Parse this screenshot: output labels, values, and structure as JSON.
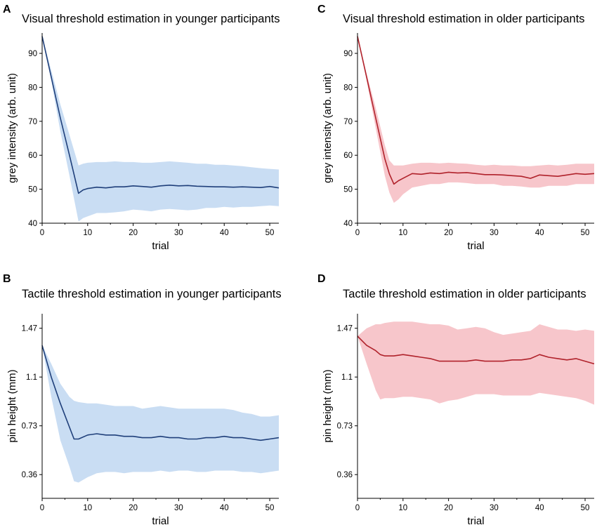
{
  "chart_data": [
    {
      "id": "A",
      "panel_label": "A",
      "type": "line",
      "title": "Visual threshold estimation in younger participants",
      "xlabel": "trial",
      "ylabel": "grey intensity (arb. unit)",
      "xlim": [
        0,
        52
      ],
      "ylim": [
        40,
        96
      ],
      "xticks": [
        0,
        10,
        20,
        30,
        40,
        50
      ],
      "yticks": [
        40,
        50,
        60,
        70,
        80,
        90
      ],
      "ytick_labels": [
        "40",
        "50",
        "60",
        "70",
        "80",
        "90"
      ],
      "line_color": "#1f3f7a",
      "band_color": "#c9ddf3",
      "series": [
        {
          "name": "mean",
          "x": [
            0,
            2,
            4,
            6,
            8,
            9,
            10,
            12,
            14,
            16,
            18,
            20,
            22,
            24,
            26,
            28,
            30,
            32,
            34,
            36,
            38,
            40,
            42,
            44,
            46,
            48,
            50,
            52
          ],
          "y": [
            95,
            83,
            71,
            60,
            48.8,
            49.8,
            50.2,
            50.6,
            50.4,
            50.7,
            50.7,
            51.0,
            50.8,
            50.6,
            51.0,
            51.2,
            51.0,
            51.1,
            50.9,
            50.8,
            50.7,
            50.7,
            50.6,
            50.7,
            50.6,
            50.5,
            50.8,
            50.4
          ],
          "lower": [
            95,
            82,
            67,
            54,
            40.5,
            41.5,
            42.0,
            43.0,
            43.0,
            43.2,
            43.5,
            44.0,
            43.8,
            43.5,
            44.0,
            44.2,
            44.0,
            43.8,
            44.0,
            44.5,
            44.5,
            44.8,
            44.6,
            44.8,
            44.8,
            45.0,
            45.2,
            45.0
          ],
          "upper": [
            95,
            85,
            75,
            66,
            57.0,
            57.5,
            57.8,
            58.0,
            58.0,
            58.2,
            58.0,
            58.0,
            57.8,
            57.8,
            58.0,
            58.2,
            58.0,
            57.8,
            57.5,
            57.5,
            57.2,
            57.2,
            57.0,
            56.8,
            56.5,
            56.2,
            56.0,
            55.8
          ]
        }
      ]
    },
    {
      "id": "C",
      "panel_label": "C",
      "type": "line",
      "title": "Visual threshold estimation in older participants",
      "xlabel": "trial",
      "ylabel": "grey intensity (arb. unit)",
      "xlim": [
        0,
        52
      ],
      "ylim": [
        40,
        96
      ],
      "xticks": [
        0,
        10,
        20,
        30,
        40,
        50
      ],
      "yticks": [
        40,
        50,
        60,
        70,
        80,
        90
      ],
      "ytick_labels": [
        "40",
        "50",
        "60",
        "70",
        "80",
        "90"
      ],
      "line_color": "#b0222b",
      "band_color": "#f7c6cb",
      "series": [
        {
          "name": "mean",
          "x": [
            0,
            2,
            4,
            6,
            7,
            8,
            9,
            10,
            12,
            14,
            16,
            18,
            20,
            22,
            24,
            26,
            28,
            30,
            32,
            34,
            36,
            38,
            40,
            42,
            44,
            46,
            48,
            50,
            52
          ],
          "y": [
            95,
            83,
            71,
            59,
            54.5,
            51.5,
            52.5,
            53.2,
            54.6,
            54.4,
            54.8,
            54.6,
            55.0,
            54.8,
            54.9,
            54.6,
            54.3,
            54.3,
            54.2,
            54.0,
            53.8,
            53.2,
            54.2,
            54.0,
            53.8,
            54.2,
            54.6,
            54.4,
            54.6
          ],
          "lower": [
            95,
            82,
            68,
            54,
            49.0,
            46.0,
            47.0,
            48.5,
            50.5,
            51.0,
            51.5,
            51.5,
            52.0,
            52.0,
            51.8,
            51.5,
            51.5,
            51.5,
            51.0,
            51.0,
            50.8,
            50.5,
            50.5,
            51.0,
            51.0,
            51.0,
            51.5,
            51.5,
            51.5
          ],
          "upper": [
            95,
            84,
            74,
            63,
            58.5,
            57.0,
            57.0,
            57.0,
            57.5,
            57.8,
            57.8,
            57.6,
            57.8,
            57.6,
            57.5,
            57.2,
            57.0,
            57.2,
            57.0,
            57.0,
            56.8,
            56.8,
            57.0,
            57.2,
            57.0,
            57.2,
            57.5,
            57.5,
            57.5
          ]
        }
      ]
    },
    {
      "id": "B",
      "panel_label": "B",
      "type": "line",
      "title": "Tactile threshold estimation in younger participants",
      "xlabel": "trial",
      "ylabel": "pin height (mm)",
      "xlim": [
        0,
        52
      ],
      "ylim": [
        0.18,
        1.58
      ],
      "xticks": [
        0,
        10,
        20,
        30,
        40,
        50
      ],
      "yticks": [
        0.36,
        0.73,
        1.1,
        1.47
      ],
      "ytick_labels": [
        "0.36",
        "0.73",
        "1.1",
        "1.47"
      ],
      "line_color": "#1f3f7a",
      "band_color": "#c9ddf3",
      "series": [
        {
          "name": "mean",
          "x": [
            0,
            2,
            4,
            6,
            7,
            8,
            10,
            12,
            14,
            16,
            18,
            20,
            22,
            24,
            26,
            28,
            30,
            32,
            34,
            36,
            38,
            40,
            42,
            44,
            46,
            48,
            50,
            52
          ],
          "y": [
            1.34,
            1.1,
            0.9,
            0.72,
            0.63,
            0.63,
            0.66,
            0.67,
            0.66,
            0.66,
            0.65,
            0.65,
            0.64,
            0.64,
            0.65,
            0.64,
            0.64,
            0.63,
            0.63,
            0.64,
            0.64,
            0.65,
            0.64,
            0.64,
            0.63,
            0.62,
            0.63,
            0.64
          ],
          "lower": [
            1.34,
            0.95,
            0.62,
            0.42,
            0.31,
            0.3,
            0.34,
            0.37,
            0.38,
            0.38,
            0.37,
            0.38,
            0.38,
            0.38,
            0.39,
            0.38,
            0.39,
            0.39,
            0.38,
            0.38,
            0.39,
            0.39,
            0.39,
            0.38,
            0.38,
            0.37,
            0.38,
            0.39
          ],
          "upper": [
            1.34,
            1.2,
            1.05,
            0.95,
            0.92,
            0.91,
            0.9,
            0.9,
            0.89,
            0.88,
            0.88,
            0.88,
            0.86,
            0.87,
            0.88,
            0.87,
            0.86,
            0.86,
            0.86,
            0.86,
            0.86,
            0.86,
            0.85,
            0.83,
            0.82,
            0.8,
            0.8,
            0.81
          ]
        }
      ]
    },
    {
      "id": "D",
      "panel_label": "D",
      "type": "line",
      "title": "Tactile threshold estimation in older participants",
      "xlabel": "trial",
      "ylabel": "pin height (mm)",
      "xlim": [
        0,
        52
      ],
      "ylim": [
        0.18,
        1.58
      ],
      "xticks": [
        0,
        10,
        20,
        30,
        40,
        50
      ],
      "yticks": [
        0.36,
        0.73,
        1.1,
        1.47
      ],
      "ytick_labels": [
        "0.36",
        "0.73",
        "1.1",
        "1.47"
      ],
      "line_color": "#b0222b",
      "band_color": "#f7c6cb",
      "series": [
        {
          "name": "mean",
          "x": [
            0,
            2,
            4,
            5,
            6,
            8,
            10,
            12,
            14,
            16,
            18,
            20,
            22,
            24,
            26,
            28,
            30,
            32,
            34,
            36,
            38,
            40,
            42,
            44,
            46,
            48,
            50,
            52
          ],
          "y": [
            1.41,
            1.34,
            1.3,
            1.27,
            1.26,
            1.26,
            1.27,
            1.26,
            1.25,
            1.24,
            1.22,
            1.22,
            1.22,
            1.22,
            1.23,
            1.22,
            1.22,
            1.22,
            1.23,
            1.23,
            1.24,
            1.27,
            1.25,
            1.24,
            1.23,
            1.24,
            1.22,
            1.2
          ],
          "lower": [
            1.41,
            1.2,
            1.0,
            0.93,
            0.94,
            0.94,
            0.95,
            0.95,
            0.94,
            0.93,
            0.9,
            0.92,
            0.93,
            0.95,
            0.97,
            0.97,
            0.97,
            0.96,
            0.96,
            0.96,
            0.96,
            0.98,
            0.97,
            0.96,
            0.95,
            0.94,
            0.92,
            0.89
          ],
          "upper": [
            1.41,
            1.47,
            1.5,
            1.5,
            1.51,
            1.52,
            1.52,
            1.52,
            1.51,
            1.5,
            1.5,
            1.49,
            1.46,
            1.47,
            1.48,
            1.47,
            1.44,
            1.42,
            1.43,
            1.44,
            1.45,
            1.5,
            1.48,
            1.46,
            1.46,
            1.45,
            1.46,
            1.45
          ]
        }
      ]
    }
  ]
}
